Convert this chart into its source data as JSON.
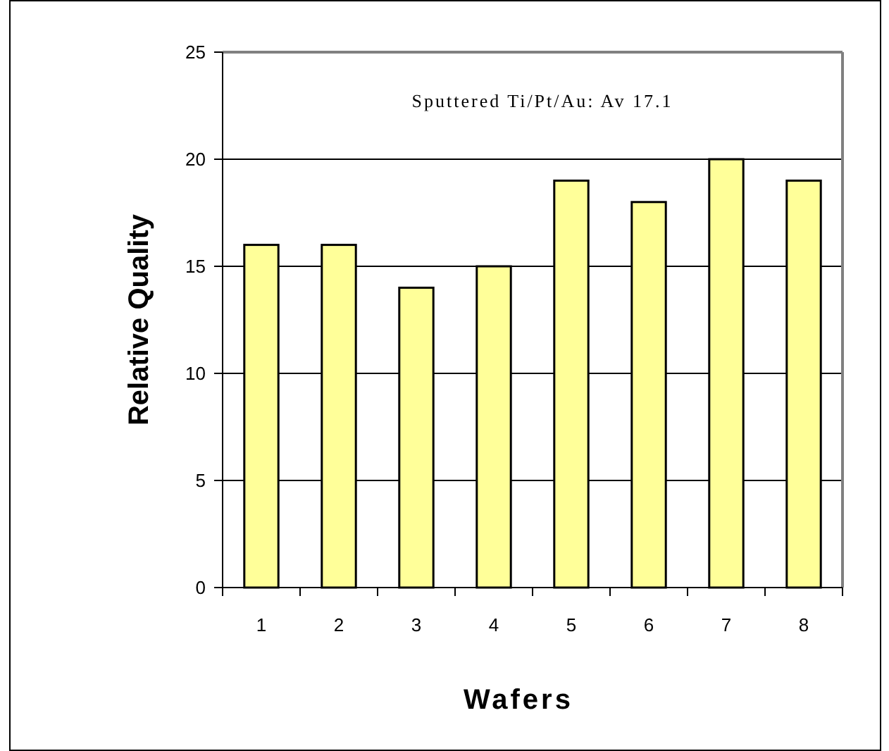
{
  "chart_data": {
    "type": "bar",
    "xlabel": "Wafers",
    "ylabel": "Relative Quality",
    "categories": [
      "1",
      "2",
      "3",
      "4",
      "5",
      "6",
      "7",
      "8"
    ],
    "values": [
      16,
      16,
      14,
      15,
      19,
      18,
      20,
      19
    ],
    "color": "#ffff99",
    "ylim": [
      0,
      25
    ],
    "yticks": [
      0,
      5,
      10,
      15,
      20,
      25
    ],
    "grid": "y",
    "annotations": [
      "Sputtered Ti/Pt/Au: Av 17.1"
    ]
  }
}
